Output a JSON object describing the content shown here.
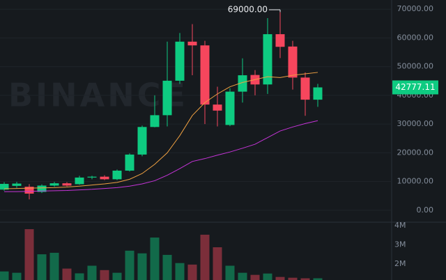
{
  "chart_data": {
    "type": "candlestick",
    "watermark": "BINANCE",
    "up_color": "#0ecb81",
    "down_color": "#f6465d",
    "open": [
      7200,
      8500,
      8200,
      6400,
      8600,
      9400,
      9100,
      11400,
      11700,
      10800,
      13800,
      19400,
      29000,
      33100,
      45100,
      58700,
      57400,
      36800,
      29700,
      41300,
      47100,
      43800,
      61300,
      57000,
      46200,
      38500
    ],
    "high": [
      9800,
      9900,
      9100,
      9000,
      9900,
      9800,
      12000,
      12000,
      12200,
      14200,
      19800,
      29500,
      40000,
      58700,
      61700,
      64800,
      59000,
      43000,
      42500,
      52900,
      48800,
      66900,
      69000,
      59000,
      48000,
      44000
    ],
    "low": [
      6800,
      7800,
      3800,
      6000,
      8200,
      8300,
      8900,
      10800,
      10500,
      10500,
      13500,
      18800,
      28900,
      29200,
      44000,
      47000,
      30000,
      29200,
      29300,
      37500,
      40000,
      40500,
      53000,
      42000,
      32900,
      36000
    ],
    "close": [
      9200,
      9300,
      5800,
      8600,
      9400,
      8600,
      11400,
      11700,
      10800,
      13800,
      19400,
      29000,
      33100,
      45100,
      58700,
      57400,
      36800,
      34700,
      41300,
      47000,
      43800,
      61300,
      56900,
      46200,
      38500,
      42777.11
    ],
    "close_label": "42777.11",
    "high_label": "69000.00",
    "ma_lines": [
      {
        "color": "#f0a142",
        "values": [
          7500,
          7600,
          7700,
          7800,
          7900,
          8100,
          8400,
          8800,
          9200,
          9700,
          10800,
          12800,
          16000,
          20000,
          26000,
          33000,
          37500,
          40500,
          43000,
          44500,
          45500,
          46500,
          46200,
          47000,
          47500,
          48000
        ]
      },
      {
        "color": "#c534d8",
        "values": [
          6500,
          6500,
          6600,
          6700,
          6800,
          6900,
          7100,
          7300,
          7600,
          7900,
          8400,
          9200,
          10300,
          12200,
          14500,
          17000,
          18000,
          19200,
          20300,
          21600,
          23000,
          25300,
          27600,
          29000,
          30200,
          31200
        ]
      }
    ],
    "ylim": [
      -3900,
      73200
    ],
    "yticks": [
      {
        "value": 0,
        "label": "0.00"
      },
      {
        "value": 10000,
        "label": "10000.00"
      },
      {
        "value": 20000,
        "label": "20000.00"
      },
      {
        "value": 30000,
        "label": "30000.00"
      },
      {
        "value": 40000,
        "label": "40000.00"
      },
      {
        "value": 50000,
        "label": "50000.00"
      },
      {
        "value": 60000,
        "label": "60000.00"
      },
      {
        "value": 70000,
        "label": "70000.00"
      }
    ],
    "volume": {
      "values": [
        1600000,
        1530000,
        3820000,
        2500000,
        2580000,
        1750000,
        1500000,
        1900000,
        1670000,
        1530000,
        2690000,
        2550000,
        3380000,
        2470000,
        2040000,
        1960000,
        3530000,
        2870000,
        1900000,
        1530000,
        1420000,
        1490000,
        1310000,
        1270000,
        1240000,
        1240000
      ],
      "ylim": [
        1150000,
        4150000
      ],
      "yticks": [
        {
          "value": 2000000,
          "label": "2M"
        },
        {
          "value": 3000000,
          "label": "3M"
        },
        {
          "value": 4000000,
          "label": "4M"
        }
      ]
    }
  }
}
